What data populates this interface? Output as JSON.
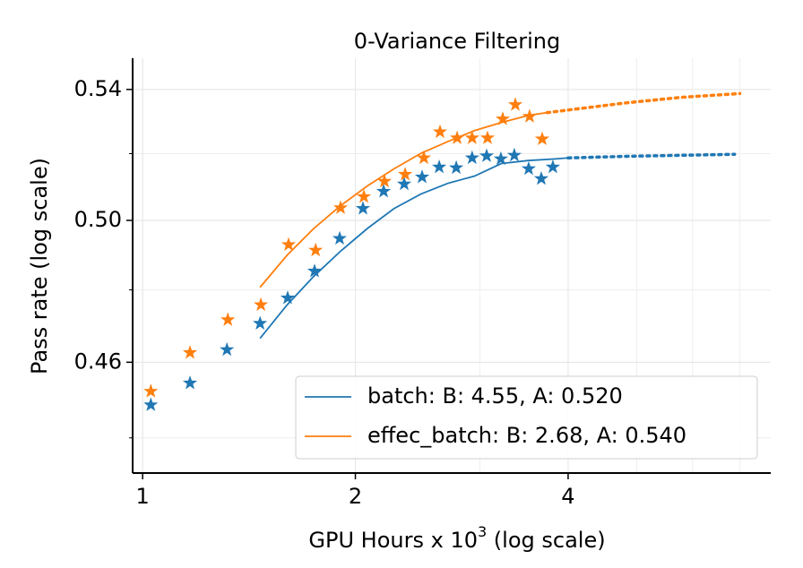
{
  "chart_data": {
    "type": "scatter",
    "title": "0-Variance Filtering",
    "xlabel": {
      "text": "GPU Hours x 10",
      "superscript": "3",
      "suffix": " (log scale)"
    },
    "ylabel": "Pass rate (log scale)",
    "xscale": "log",
    "yscale": "log",
    "xlim": [
      0.968,
      7.74
    ],
    "ylim": [
      0.431,
      0.55
    ],
    "xticks": [
      1,
      2,
      4
    ],
    "yticks": [
      {
        "value": 0.46,
        "label": "0.46"
      },
      {
        "value": 0.5,
        "label": "0.50"
      },
      0.54
    ],
    "x_minor_ticks": [
      3,
      5,
      6,
      7
    ],
    "y_minor_ticks": [
      0.44,
      0.48,
      0.52
    ],
    "grid": true,
    "legend": "lower right",
    "series": [
      {
        "name": "batch: B: 4.55, A: 0.520",
        "color": "#1f77b4",
        "x": [
          1.027,
          1.167,
          1.316,
          1.466,
          1.604,
          1.751,
          1.9,
          2.05,
          2.193,
          2.345,
          2.486,
          2.628,
          2.778,
          2.926,
          3.067,
          3.213,
          3.357,
          3.518,
          3.665,
          3.806
        ],
        "values": [
          0.4486,
          0.4544,
          0.4634,
          0.4706,
          0.4777,
          0.4853,
          0.4947,
          0.5035,
          0.5086,
          0.5108,
          0.5129,
          0.5159,
          0.5157,
          0.5187,
          0.5193,
          0.5184,
          0.5195,
          0.5154,
          0.5124,
          0.5159
        ],
        "fit": {
          "x": [
            1.466,
            1.6,
            1.746,
            1.905,
            2.079,
            2.269,
            2.476,
            2.702,
            2.949,
            3.218,
            3.512,
            3.835,
            4.0
          ],
          "values": [
            0.4665,
            0.4757,
            0.4838,
            0.491,
            0.4976,
            0.5035,
            0.5078,
            0.511,
            0.5132,
            0.517,
            0.5179,
            0.5184,
            0.5187
          ]
        },
        "extrapolation": {
          "x": [
            4.0,
            4.85,
            5.78,
            6.88
          ],
          "values": [
            0.5187,
            0.5192,
            0.5195,
            0.5198
          ]
        }
      },
      {
        "name": "effec_batch: B: 2.68, A: 0.540",
        "color": "#ff7f0e",
        "x": [
          1.027,
          1.167,
          1.32,
          1.47,
          1.609,
          1.757,
          1.906,
          2.056,
          2.199,
          2.352,
          2.5,
          2.635,
          2.786,
          2.926,
          3.076,
          3.233,
          3.368,
          3.528,
          3.676
        ],
        "values": [
          0.4522,
          0.4626,
          0.4716,
          0.4758,
          0.4929,
          0.4913,
          0.5037,
          0.507,
          0.5116,
          0.5137,
          0.5187,
          0.5267,
          0.5248,
          0.5248,
          0.5248,
          0.5307,
          0.5352,
          0.5315,
          0.5245
        ],
        "fit": {
          "x": [
            1.466,
            1.6,
            1.746,
            1.905,
            2.079,
            2.269,
            2.476,
            2.702,
            2.949,
            3.218,
            3.512,
            3.735
          ],
          "values": [
            0.4807,
            0.4898,
            0.4976,
            0.5043,
            0.5102,
            0.5154,
            0.5201,
            0.5237,
            0.5271,
            0.5296,
            0.5318,
            0.5327
          ]
        },
        "extrapolation": {
          "x": [
            3.735,
            4.85,
            5.78,
            7.0
          ],
          "values": [
            0.5327,
            0.5358,
            0.5375,
            0.5387
          ]
        }
      }
    ]
  }
}
